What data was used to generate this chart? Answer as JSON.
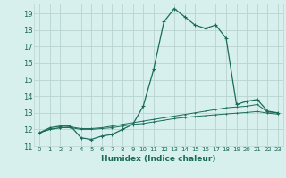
{
  "title": "",
  "xlabel": "Humidex (Indice chaleur)",
  "background_color": "#d7f0ee",
  "grid_color": "#b8d4d0",
  "line_color": "#1a6b5a",
  "xlim": [
    -0.5,
    23.5
  ],
  "ylim": [
    11,
    19.6
  ],
  "yticks": [
    11,
    12,
    13,
    14,
    15,
    16,
    17,
    18,
    19
  ],
  "xticks": [
    0,
    1,
    2,
    3,
    4,
    5,
    6,
    7,
    8,
    9,
    10,
    11,
    12,
    13,
    14,
    15,
    16,
    17,
    18,
    19,
    20,
    21,
    22,
    23
  ],
  "series1_x": [
    0,
    1,
    2,
    3,
    4,
    5,
    6,
    7,
    8,
    9,
    10,
    11,
    12,
    13,
    14,
    15,
    16,
    17,
    18,
    19,
    20,
    21,
    22,
    23
  ],
  "series1_y": [
    11.8,
    12.1,
    12.2,
    12.2,
    11.5,
    11.4,
    11.6,
    11.7,
    12.0,
    12.3,
    13.4,
    15.6,
    18.5,
    19.3,
    18.8,
    18.3,
    18.1,
    18.3,
    17.5,
    13.5,
    13.7,
    13.8,
    13.1,
    13.0
  ],
  "series2_x": [
    0,
    1,
    2,
    3,
    4,
    5,
    6,
    7,
    8,
    9,
    10,
    11,
    12,
    13,
    14,
    15,
    16,
    17,
    18,
    19,
    20,
    21,
    22,
    23
  ],
  "series2_y": [
    11.8,
    12.0,
    12.1,
    12.15,
    12.05,
    12.05,
    12.1,
    12.2,
    12.3,
    12.4,
    12.5,
    12.6,
    12.7,
    12.8,
    12.9,
    13.0,
    13.1,
    13.2,
    13.3,
    13.35,
    13.4,
    13.5,
    13.05,
    13.0
  ],
  "series3_x": [
    0,
    1,
    2,
    3,
    4,
    5,
    6,
    7,
    8,
    9,
    10,
    11,
    12,
    13,
    14,
    15,
    16,
    17,
    18,
    19,
    20,
    21,
    22,
    23
  ],
  "series3_y": [
    11.8,
    12.0,
    12.1,
    12.1,
    12.0,
    12.0,
    12.05,
    12.1,
    12.2,
    12.3,
    12.35,
    12.45,
    12.55,
    12.65,
    12.72,
    12.78,
    12.83,
    12.88,
    12.93,
    12.98,
    13.02,
    13.08,
    12.98,
    12.92
  ]
}
